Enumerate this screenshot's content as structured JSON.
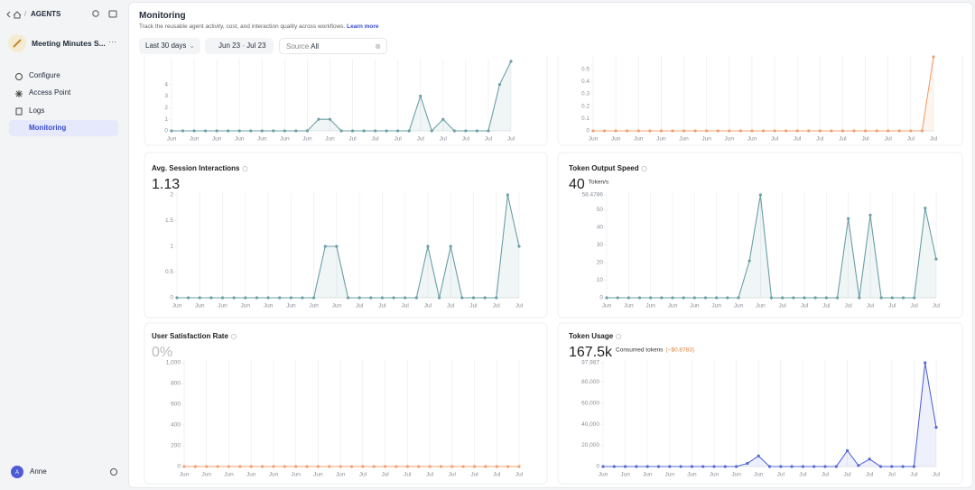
{
  "sidebar": {
    "breadcrumb": "AGENTS",
    "app_name": "Meeting Minutes S...",
    "nav": [
      "Configure",
      "Access Point",
      "Logs",
      "Monitoring"
    ],
    "avatar": "A",
    "user": "Anne"
  },
  "header": {
    "title": "Monitoring",
    "description": "Track the reusable agent activity, cost, and interaction quality across workflows.",
    "link": "Learn more",
    "filters": {
      "range": "Last 30 days",
      "start": "Jun 23",
      "separator": "-",
      "end": "Jul 23",
      "source_label": "Source",
      "source_value": "All"
    }
  },
  "chart_data": [
    {
      "type": "line",
      "color": "#6a9fa6",
      "ylim": [
        0,
        6
      ],
      "yticks": [
        0,
        1,
        2,
        3,
        4
      ],
      "categories": [
        "Jun",
        null,
        "Jun",
        null,
        "Jun",
        null,
        "Jun",
        null,
        "Jun",
        null,
        "Jun",
        null,
        "Jun",
        null,
        "Jun",
        null,
        "Jul",
        null,
        "Jul",
        null,
        "Jul",
        null,
        "Jul",
        null,
        "Jul",
        null,
        "Jul",
        null,
        "Jul",
        null,
        "Jul"
      ],
      "values": [
        0,
        0,
        0,
        0,
        0,
        0,
        0,
        0,
        0,
        0,
        0,
        0,
        0,
        1,
        1,
        0,
        0,
        0,
        0,
        0,
        0,
        0,
        3,
        0,
        1,
        0,
        0,
        0,
        0,
        4,
        6
      ]
    },
    {
      "type": "line",
      "color": "#f0a070",
      "ylim": [
        0,
        0.6
      ],
      "yticks": [
        0,
        0.1,
        0.2,
        0.3,
        0.4,
        0.5
      ],
      "categories": [
        "Jun",
        null,
        "Jun",
        null,
        "Jun",
        null,
        "Jun",
        null,
        "Jun",
        null,
        "Jun",
        null,
        "Jun",
        null,
        "Jun",
        null,
        "Jul",
        null,
        "Jul",
        null,
        "Jul",
        null,
        "Jul",
        null,
        "Jul",
        null,
        "Jul",
        null,
        "Jul",
        null,
        "Jul"
      ],
      "values": [
        0,
        0,
        0,
        0,
        0,
        0,
        0,
        0,
        0,
        0,
        0,
        0,
        0,
        0,
        0,
        0,
        0,
        0,
        0,
        0,
        0,
        0,
        0,
        0,
        0,
        0,
        0,
        0,
        0,
        0,
        0.6
      ]
    },
    {
      "type": "line",
      "title": "Avg. Session Interactions",
      "headline": "1.13",
      "color": "#6a9fa6",
      "ylim": [
        0,
        2
      ],
      "yticks": [
        0,
        0.5,
        1,
        1.5,
        2
      ],
      "categories": [
        "Jun",
        null,
        "Jun",
        null,
        "Jun",
        null,
        "Jun",
        null,
        "Jun",
        null,
        "Jun",
        null,
        "Jun",
        null,
        "Jun",
        null,
        "Jul",
        null,
        "Jul",
        null,
        "Jul",
        null,
        "Jul",
        null,
        "Jul",
        null,
        "Jul",
        null,
        "Jul",
        null,
        "Jul"
      ],
      "values": [
        0,
        0,
        0,
        0,
        0,
        0,
        0,
        0,
        0,
        0,
        0,
        0,
        0,
        1,
        1,
        0,
        0,
        0,
        0,
        0,
        0,
        0,
        1,
        0,
        1,
        0,
        0,
        0,
        0,
        2,
        1
      ]
    },
    {
      "type": "line",
      "title": "Token Output Speed",
      "headline": "40",
      "unit": "Token/s",
      "color": "#6a9fa6",
      "ylim": [
        0,
        58.4786
      ],
      "yticks": [
        0,
        10,
        20,
        30,
        40,
        50,
        58.4786
      ],
      "categories": [
        "Jun",
        null,
        "Jun",
        null,
        "Jun",
        null,
        "Jun",
        null,
        "Jun",
        null,
        "Jun",
        null,
        "Jun",
        null,
        "Jun",
        null,
        "Jul",
        null,
        "Jul",
        null,
        "Jul",
        null,
        "Jul",
        null,
        "Jul",
        null,
        "Jul",
        null,
        "Jul",
        null,
        "Jul"
      ],
      "values": [
        0,
        0,
        0,
        0,
        0,
        0,
        0,
        0,
        0,
        0,
        0,
        0,
        0,
        21,
        58.4786,
        0,
        0,
        0,
        0,
        0,
        0,
        0,
        45,
        0,
        47,
        0,
        0,
        0,
        0,
        51,
        22
      ]
    },
    {
      "type": "line",
      "title": "User Satisfaction Rate",
      "headline": "0%",
      "color": "#f0a070",
      "ylim": [
        0,
        1000
      ],
      "yticks": [
        0,
        200,
        400,
        600,
        800,
        {
          "value": 1000,
          "label": "1,000"
        }
      ],
      "categories": [
        "Jun",
        null,
        "Jun",
        null,
        "Jun",
        null,
        "Jun",
        null,
        "Jun",
        null,
        "Jun",
        null,
        "Jun",
        null,
        "Jun",
        null,
        "Jul",
        null,
        "Jul",
        null,
        "Jul",
        null,
        "Jul",
        null,
        "Jul",
        null,
        "Jul",
        null,
        "Jul",
        null,
        "Jul"
      ],
      "values": [
        0,
        0,
        0,
        0,
        0,
        0,
        0,
        0,
        0,
        0,
        0,
        0,
        0,
        0,
        0,
        0,
        0,
        0,
        0,
        0,
        0,
        0,
        0,
        0,
        0,
        0,
        0,
        0,
        0,
        0,
        0
      ]
    },
    {
      "type": "line",
      "title": "Token Usage",
      "headline": "167.5k",
      "unit": "Consumed tokens",
      "note": "(~$0.8783)",
      "color": "#5468d4",
      "ylim": [
        0,
        97987
      ],
      "yticks": [
        0,
        {
          "value": 20000,
          "label": "20,000"
        },
        {
          "value": 40000,
          "label": "40,000"
        },
        {
          "value": 60000,
          "label": "60,000"
        },
        {
          "value": 80000,
          "label": "80,000"
        },
        {
          "value": 97987,
          "label": "97,987"
        }
      ],
      "categories": [
        "Jun",
        null,
        "Jun",
        null,
        "Jun",
        null,
        "Jun",
        null,
        "Jun",
        null,
        "Jun",
        null,
        "Jun",
        null,
        "Jun",
        null,
        "Jul",
        null,
        "Jul",
        null,
        "Jul",
        null,
        "Jul",
        null,
        "Jul",
        null,
        "Jul",
        null,
        "Jul",
        null,
        "Jul"
      ],
      "values": [
        0,
        0,
        0,
        0,
        0,
        0,
        0,
        0,
        0,
        0,
        0,
        0,
        0,
        3000,
        10000,
        0,
        0,
        0,
        0,
        0,
        0,
        0,
        15000,
        1000,
        7000,
        0,
        0,
        0,
        0,
        97987,
        37000
      ]
    }
  ]
}
